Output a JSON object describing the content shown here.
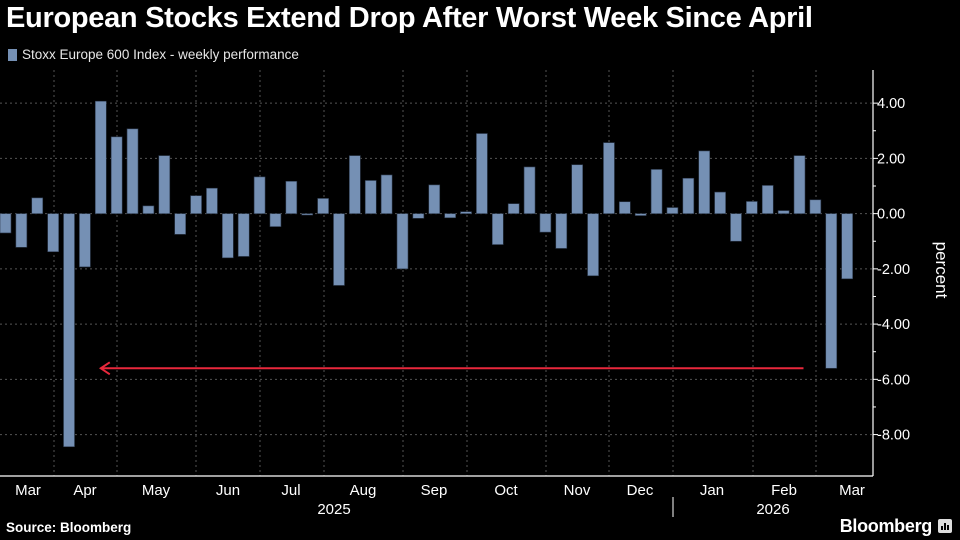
{
  "title": "European Stocks Extend Drop After Worst Week Since April",
  "footer": {
    "source": "Source: Bloomberg",
    "brand": "Bloomberg"
  },
  "colors": {
    "bar": "#7590b4",
    "arrow": "#e8283c",
    "background": "#000000",
    "grid": "#555555"
  },
  "chart_data": {
    "type": "bar",
    "title": "European Stocks Extend Drop After Worst Week Since April",
    "legend": {
      "entries": [
        "Stoxx Europe 600 Index - weekly performance"
      ],
      "placement": "top-left"
    },
    "series": [
      {
        "name": "Stoxx Europe 600 Index - weekly performance",
        "values": [
          -0.7,
          -1.22,
          0.57,
          -1.38,
          -8.44,
          -1.93,
          4.07,
          2.78,
          3.07,
          0.28,
          2.1,
          -0.75,
          0.65,
          0.92,
          -1.6,
          -1.55,
          1.33,
          -0.47,
          1.17,
          -0.05,
          0.55,
          -2.6,
          2.1,
          1.2,
          1.4,
          -2.0,
          -0.17,
          1.04,
          -0.15,
          0.07,
          2.9,
          -1.12,
          0.36,
          1.69,
          -0.67,
          -1.26,
          1.77,
          -2.25,
          2.57,
          0.43,
          -0.07,
          1.6,
          0.22,
          1.28,
          2.27,
          0.78,
          -1.0,
          0.44,
          1.02,
          0.11,
          2.1,
          0.5,
          -5.6,
          -2.36
        ]
      }
    ],
    "xaxis": {
      "frequency": "weekly",
      "month_labels": [
        "Mar",
        "Apr",
        "May",
        "Jun",
        "Jul",
        "Aug",
        "Sep",
        "Oct",
        "Nov",
        "Dec",
        "Jan",
        "Feb",
        "Mar"
      ],
      "year_labels": [
        "2025",
        "2026"
      ]
    },
    "yaxis": {
      "label": "percent",
      "position": "right",
      "ticks": [
        4,
        2,
        0,
        -2,
        -4,
        -6,
        -8
      ],
      "tick_labels": [
        "4.00",
        "2.00",
        "0.00",
        "-2.00",
        "-4.00",
        "-6.00",
        "-8.00"
      ],
      "ylim": [
        -9.5,
        5.2
      ]
    },
    "grid": true,
    "annotations": [
      {
        "type": "arrow",
        "direction": "left",
        "y": -5.6,
        "from_week": 50,
        "to_week": 6
      }
    ]
  }
}
